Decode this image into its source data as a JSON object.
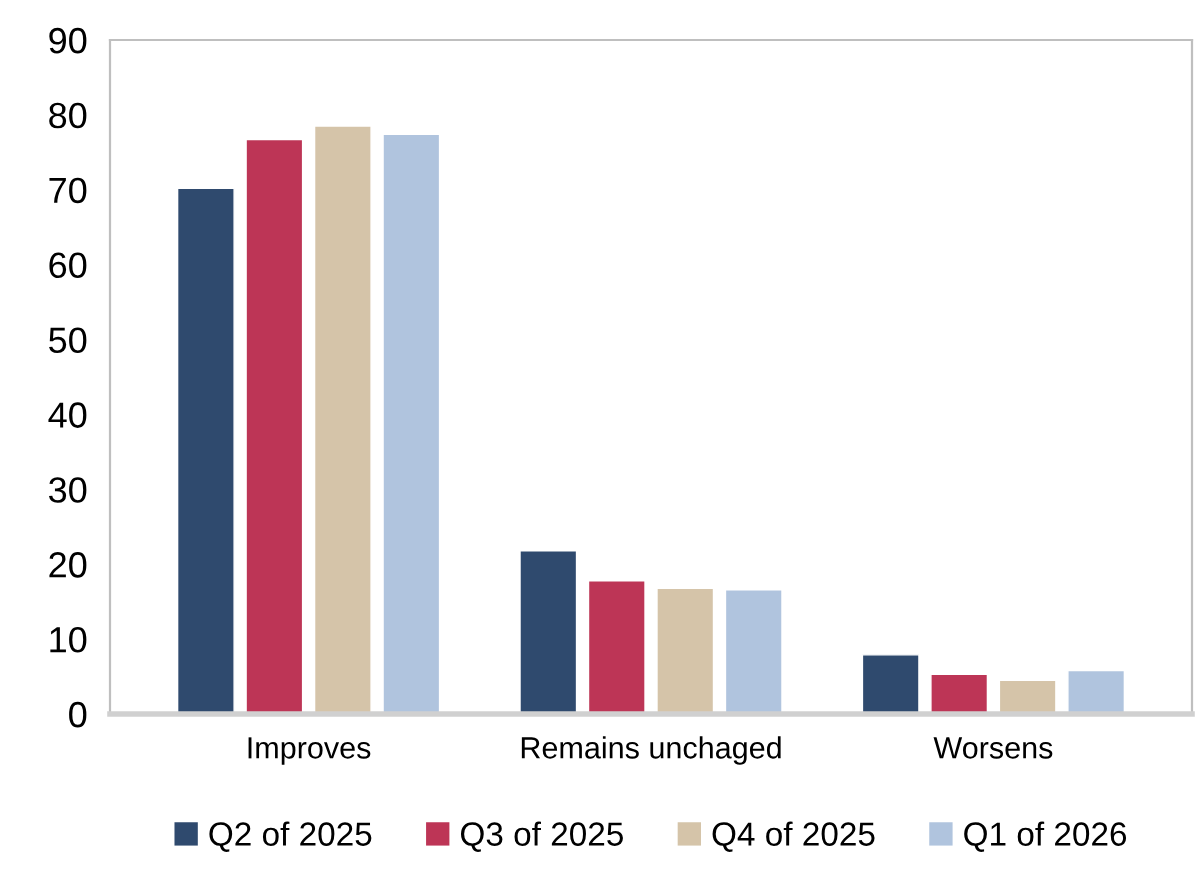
{
  "chart_data": {
    "type": "bar",
    "categories": [
      "Improves",
      "Remains unchaged",
      "Worsens"
    ],
    "series": [
      {
        "name": "Q2 of 2025",
        "color": "#2f4a6e",
        "values": [
          70.2,
          21.8,
          7.9
        ]
      },
      {
        "name": "Q3 of 2025",
        "color": "#bd3556",
        "values": [
          76.7,
          17.8,
          5.3
        ]
      },
      {
        "name": "Q4 of 2025",
        "color": "#d5c4a9",
        "values": [
          78.5,
          16.8,
          4.5
        ]
      },
      {
        "name": "Q1 of 2026",
        "color": "#b0c4de",
        "values": [
          77.4,
          16.6,
          5.8
        ]
      }
    ],
    "ylim": [
      0,
      90
    ],
    "yticks": [
      0,
      10,
      20,
      30,
      40,
      50,
      60,
      70,
      80,
      90
    ],
    "grid": false,
    "legend": "bottom"
  }
}
